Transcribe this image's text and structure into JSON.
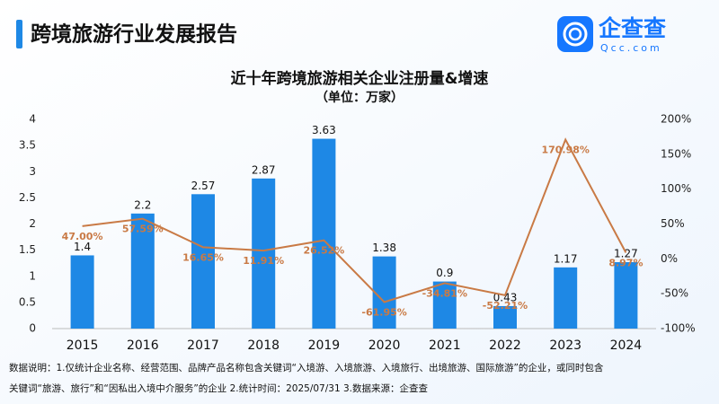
{
  "header": {
    "title": "跨境旅游行业发展报告",
    "logo_name": "企查查",
    "logo_url": "Qcc.com"
  },
  "chart_data": {
    "type": "bar_line",
    "title": "近十年跨境旅游相关企业注册量&增速",
    "subtitle": "（单位：万家）",
    "categories": [
      "2015",
      "2016",
      "2017",
      "2018",
      "2019",
      "2020",
      "2021",
      "2022",
      "2023",
      "2024"
    ],
    "series": [
      {
        "name": "注册量",
        "type": "bar",
        "color": "#1e88e5",
        "values": [
          1.4,
          2.2,
          2.57,
          2.87,
          3.63,
          1.38,
          0.9,
          0.43,
          1.17,
          1.27
        ]
      },
      {
        "name": "增速",
        "type": "line",
        "axis": "y2",
        "color": "#c97a45",
        "values": [
          47.0,
          57.59,
          16.65,
          11.91,
          26.52,
          -61.95,
          -34.81,
          -52.21,
          170.98,
          8.97
        ],
        "value_labels": [
          "47.00%",
          "57.59%",
          "16.65%",
          "11.91%",
          "26.52%",
          "-61.95%",
          "-34.81%",
          "-52.21%",
          "170.98%",
          "8.97%"
        ]
      }
    ],
    "ylim": [
      0,
      4
    ],
    "yticks": [
      0,
      0.5,
      1,
      1.5,
      2,
      2.5,
      3,
      3.5,
      4
    ],
    "y2lim": [
      -100,
      200
    ],
    "y2ticks": [
      {
        "value": -100,
        "label": "-100%"
      },
      {
        "value": -50,
        "label": "-50%"
      },
      {
        "value": 0,
        "label": "0%"
      },
      {
        "value": 50,
        "label": "50%"
      },
      {
        "value": 100,
        "label": "100%"
      },
      {
        "value": 150,
        "label": "150%"
      },
      {
        "value": 200,
        "label": "200%"
      }
    ],
    "grid": false,
    "note": [
      "数据说明：1.仅统计企业名称、经营范围、品牌产品名称包含关键词“入境游、入境旅游、入境旅行、出境旅游、国际旅游”的企业，或同时包含",
      "关键词“旅游、旅行”和“因私出入境中介服务”的企业   2.统计时间：2025/07/31   3.数据来源：企查查"
    ]
  }
}
